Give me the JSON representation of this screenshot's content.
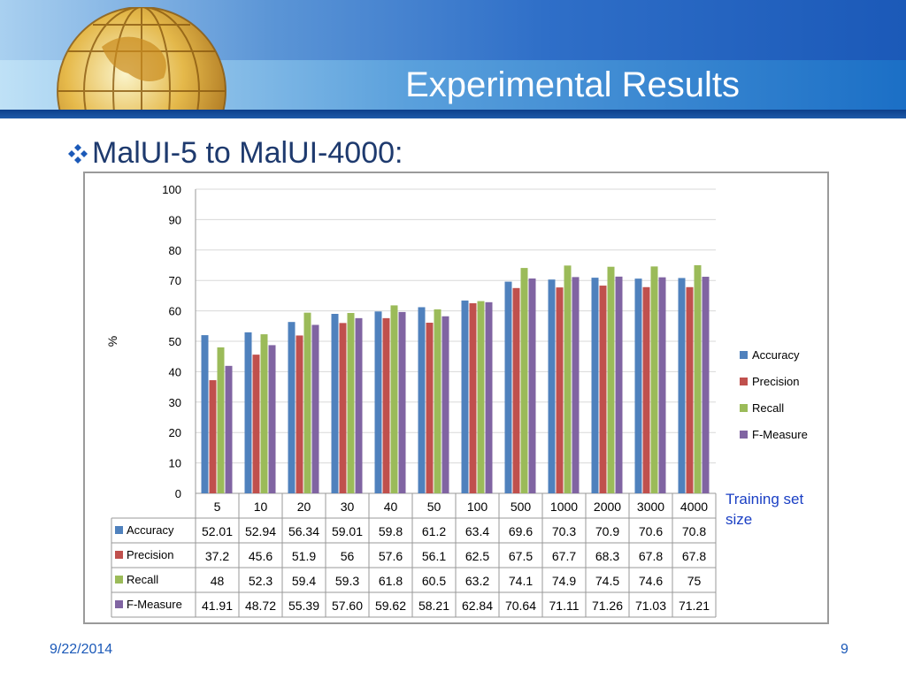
{
  "slide": {
    "title": "Experimental Results",
    "subtitle": "MalUI-5 to MalUI-4000:",
    "date": "9/22/2014",
    "page_number": "9",
    "x_caption": "Training set size"
  },
  "chart_data": {
    "type": "bar",
    "ylabel": "%",
    "ylim": [
      0,
      100
    ],
    "yticks": [
      0,
      10,
      20,
      30,
      40,
      50,
      60,
      70,
      80,
      90,
      100
    ],
    "grid": true,
    "legend_position": "right",
    "categories": [
      "5",
      "10",
      "20",
      "30",
      "40",
      "50",
      "100",
      "500",
      "1000",
      "2000",
      "3000",
      "4000"
    ],
    "series": [
      {
        "name": "Accuracy",
        "color": "#4f81bd",
        "values": [
          52.01,
          52.94,
          56.34,
          59.01,
          59.8,
          61.2,
          63.4,
          69.6,
          70.3,
          70.9,
          70.6,
          70.8
        ],
        "labels": [
          "52.01",
          "52.94",
          "56.34",
          "59.01",
          "59.8",
          "61.2",
          "63.4",
          "69.6",
          "70.3",
          "70.9",
          "70.6",
          "70.8"
        ]
      },
      {
        "name": "Precision",
        "color": "#c0504d",
        "values": [
          37.2,
          45.6,
          51.9,
          56,
          57.6,
          56.1,
          62.5,
          67.5,
          67.7,
          68.3,
          67.8,
          67.8
        ],
        "labels": [
          "37.2",
          "45.6",
          "51.9",
          "56",
          "57.6",
          "56.1",
          "62.5",
          "67.5",
          "67.7",
          "68.3",
          "67.8",
          "67.8"
        ]
      },
      {
        "name": "Recall",
        "color": "#9bbb59",
        "values": [
          48,
          52.3,
          59.4,
          59.3,
          61.8,
          60.5,
          63.2,
          74.1,
          74.9,
          74.5,
          74.6,
          75
        ],
        "labels": [
          "48",
          "52.3",
          "59.4",
          "59.3",
          "61.8",
          "60.5",
          "63.2",
          "74.1",
          "74.9",
          "74.5",
          "74.6",
          "75"
        ]
      },
      {
        "name": "F-Measure",
        "color": "#8064a2",
        "values": [
          41.91,
          48.72,
          55.39,
          57.6,
          59.62,
          58.21,
          62.84,
          70.64,
          71.11,
          71.26,
          71.03,
          71.21
        ],
        "labels": [
          "41.91",
          "48.72",
          "55.39",
          "57.60",
          "59.62",
          "58.21",
          "62.84",
          "70.64",
          "71.11",
          "71.26",
          "71.03",
          "71.21"
        ]
      }
    ]
  }
}
